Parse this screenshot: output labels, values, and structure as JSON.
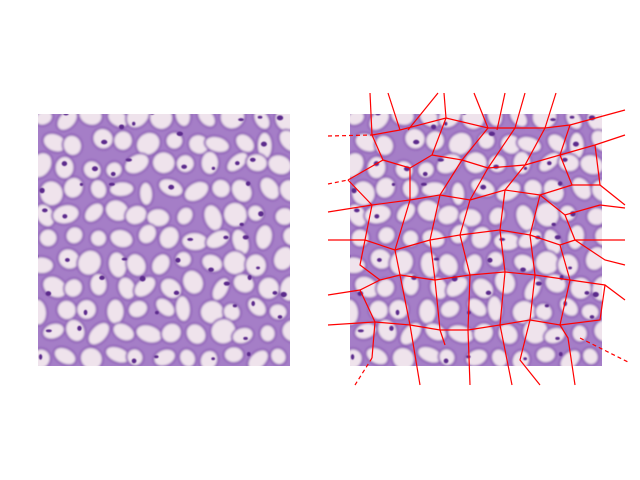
{
  "figure": {
    "description_visible_text": "",
    "panels": [
      {
        "id": "original",
        "content": "histology-tissue-image"
      },
      {
        "id": "voronoi",
        "content": "histology-tissue-image-with-voronoi-overlay"
      }
    ]
  },
  "colors": {
    "background": "#ffffff",
    "cell_membrane": "#9b6fc0",
    "cell_interior": "#efe4ec",
    "nucleus": "#5a2a8a",
    "voronoi_edge": "#ff0000"
  },
  "icons": [
    "voronoi-overlay-icon"
  ]
}
